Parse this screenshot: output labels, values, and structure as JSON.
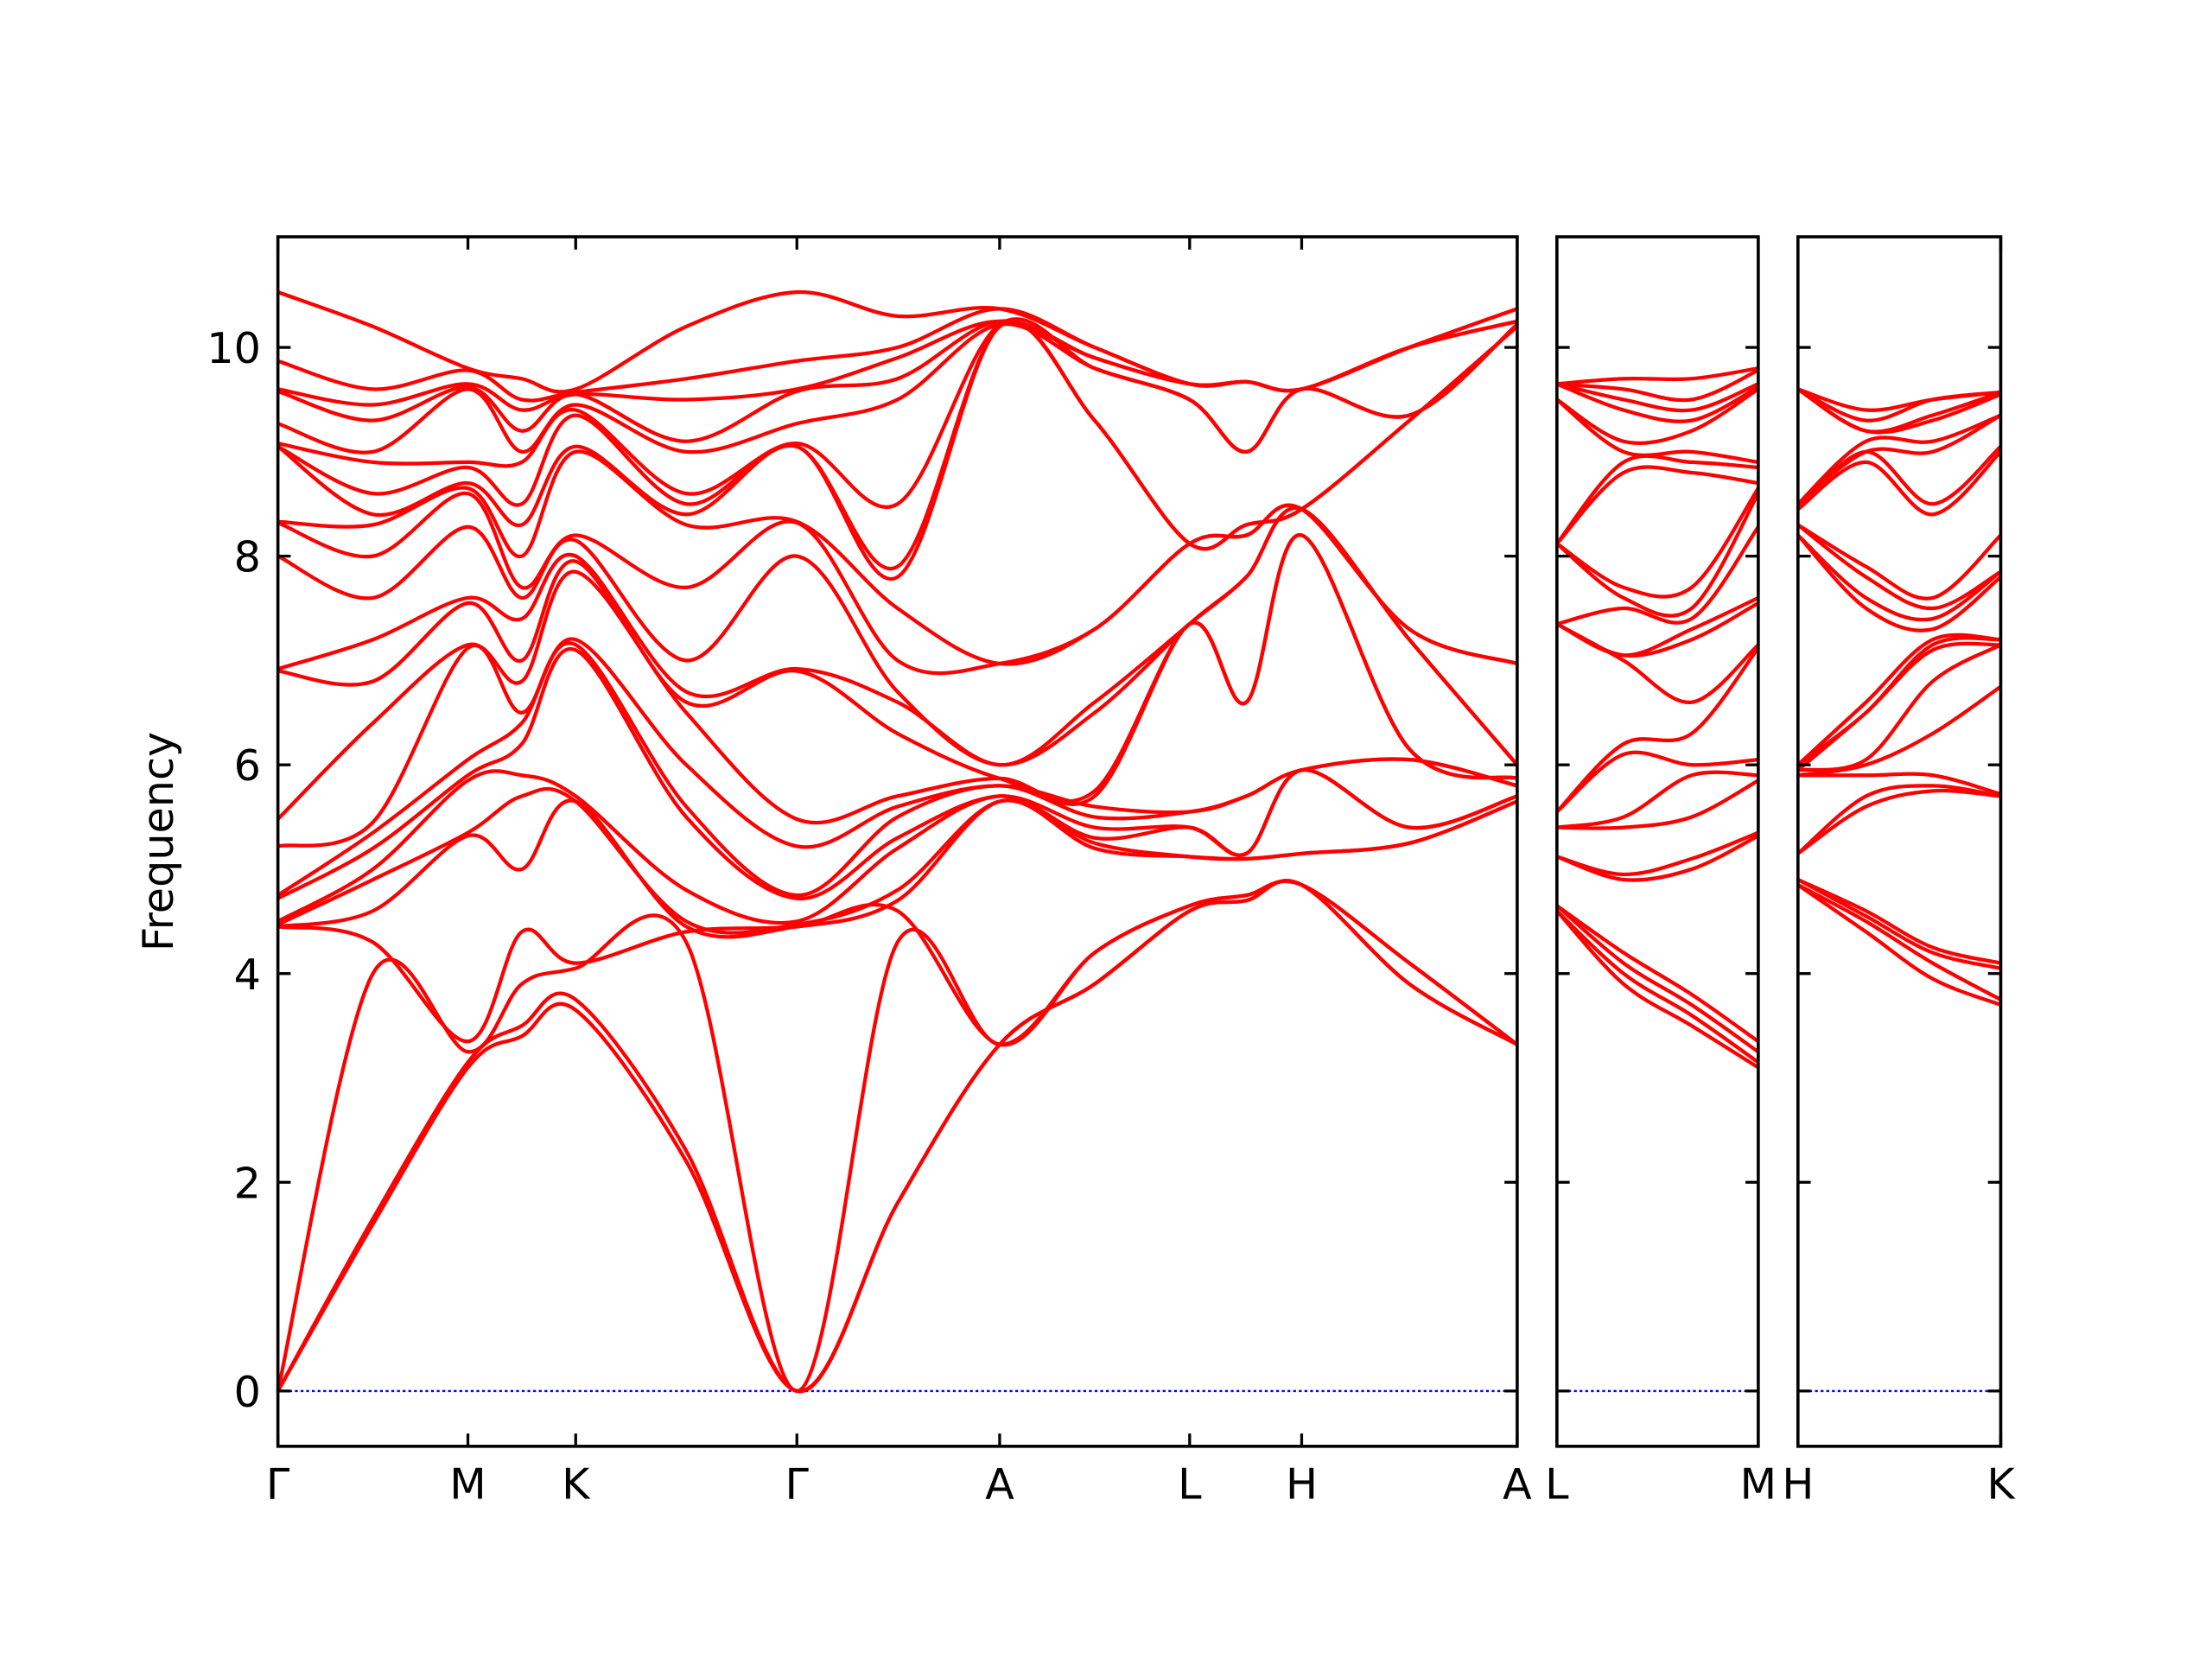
{
  "chart_data": [
    {
      "type": "line",
      "ylabel": "Frequency",
      "line_color": "#ff0000",
      "show_ytick_labels": true,
      "zero_line": {
        "value": 0,
        "color": "#0000ff"
      },
      "xlim": [
        0,
        8.74
      ],
      "ylim": [
        -0.53,
        11.06
      ],
      "yticks": [
        0,
        2,
        4,
        6,
        8,
        10
      ],
      "xticks": [
        {
          "value": 0,
          "label": "Γ"
        },
        {
          "value": 1.34,
          "label": "M"
        },
        {
          "value": 2.1,
          "label": "K"
        },
        {
          "value": 3.66,
          "label": "Γ"
        },
        {
          "value": 5.09,
          "label": "A"
        },
        {
          "value": 6.43,
          "label": "L"
        },
        {
          "value": 7.22,
          "label": "H"
        },
        {
          "value": 8.74,
          "label": "A"
        }
      ],
      "x": [
        0,
        0.67,
        1.34,
        1.72,
        2.1,
        2.88,
        3.66,
        4.37,
        5.09,
        5.76,
        6.43,
        6.83,
        7.22,
        7.98,
        8.74
      ],
      "series": [
        {
          "values": [
            0,
            1.6,
            3.1,
            3.4,
            3.65,
            2.2,
            0,
            1.8,
            3.32,
            3.9,
            4.6,
            4.7,
            4.85,
            3.9,
            3.32
          ]
        },
        {
          "values": [
            0,
            1.65,
            3.15,
            3.5,
            3.75,
            2.3,
            0,
            1.8,
            3.32,
            3.9,
            4.6,
            4.7,
            4.85,
            3.9,
            3.32
          ]
        },
        {
          "values": [
            0,
            4.0,
            3.25,
            3.9,
            4.05,
            4.3,
            0,
            4.3,
            3.32,
            4.2,
            4.65,
            4.75,
            4.85,
            4.1,
            3.32
          ]
        },
        {
          "values": [
            4.45,
            4.3,
            3.35,
            4.4,
            4.1,
            4.4,
            4.45,
            4.6,
            3.32,
            4.2,
            4.65,
            4.75,
            4.85,
            4.1,
            3.32
          ]
        },
        {
          "values": [
            4.45,
            4.6,
            5.32,
            5.0,
            5.65,
            4.45,
            4.45,
            4.7,
            5.65,
            5.2,
            5.12,
            5.1,
            5.15,
            5.25,
            5.65
          ]
        },
        {
          "values": [
            4.47,
            4.9,
            5.35,
            5.7,
            5.65,
            4.5,
            4.47,
            4.8,
            5.65,
            5.25,
            5.12,
            5.1,
            5.15,
            5.25,
            5.65
          ]
        },
        {
          "values": [
            4.5,
            5.0,
            5.85,
            5.9,
            5.7,
            4.8,
            4.5,
            5.2,
            5.7,
            5.3,
            5.4,
            5.15,
            5.95,
            5.4,
            5.7
          ]
        },
        {
          "values": [
            4.72,
            5.2,
            5.9,
            6.2,
            7.1,
            5.5,
            4.72,
            5.3,
            5.7,
            5.4,
            5.4,
            5.15,
            5.95,
            5.4,
            5.7
          ]
        },
        {
          "values": [
            4.75,
            5.35,
            6.05,
            6.4,
            7.15,
            5.6,
            4.75,
            5.5,
            5.8,
            5.5,
            5.55,
            5.7,
            5.95,
            6.05,
            5.8
          ]
        },
        {
          "values": [
            5.22,
            5.45,
            7.12,
            6.5,
            7.2,
            6.0,
            5.22,
            5.6,
            5.8,
            5.6,
            5.55,
            5.7,
            5.95,
            6.05,
            5.8
          ]
        },
        {
          "values": [
            5.48,
            6.4,
            7.15,
            6.8,
            7.85,
            6.5,
            5.48,
            5.7,
            5.87,
            5.7,
            7.35,
            6.6,
            8.2,
            6.15,
            5.87
          ]
        },
        {
          "values": [
            6.9,
            6.8,
            7.55,
            7.0,
            7.95,
            6.6,
            6.9,
            6.3,
            5.87,
            5.75,
            7.35,
            6.6,
            8.2,
            6.15,
            5.87
          ]
        },
        {
          "values": [
            6.92,
            7.2,
            7.6,
            7.4,
            8.0,
            6.7,
            6.92,
            6.6,
            6.0,
            6.5,
            7.35,
            7.8,
            8.45,
            7.2,
            6.0
          ]
        },
        {
          "values": [
            8.0,
            7.6,
            8.28,
            7.6,
            8.15,
            7.0,
            8.0,
            6.7,
            6.0,
            6.6,
            7.35,
            7.8,
            8.45,
            7.2,
            6.0
          ]
        },
        {
          "values": [
            8.32,
            8.0,
            8.6,
            7.7,
            8.2,
            7.7,
            8.32,
            7.0,
            6.97,
            7.3,
            8.12,
            8.2,
            8.45,
            7.3,
            6.97
          ]
        },
        {
          "values": [
            8.33,
            8.3,
            8.65,
            8.0,
            9.0,
            8.3,
            8.33,
            7.5,
            6.97,
            7.3,
            8.12,
            8.2,
            8.45,
            7.3,
            6.97
          ]
        },
        {
          "values": [
            9.05,
            8.4,
            8.7,
            8.3,
            9.05,
            8.4,
            9.05,
            7.8,
            10.2,
            9.3,
            8.12,
            8.3,
            8.45,
            9.3,
            10.2
          ]
        },
        {
          "values": [
            9.05,
            8.6,
            8.85,
            8.5,
            9.35,
            8.5,
            9.05,
            7.9,
            10.2,
            9.3,
            8.12,
            8.3,
            8.45,
            9.3,
            10.2
          ]
        },
        {
          "values": [
            9.08,
            8.9,
            8.9,
            8.9,
            9.4,
            8.6,
            9.08,
            8.5,
            10.22,
            9.8,
            9.5,
            9.0,
            9.6,
            9.35,
            10.22
          ]
        },
        {
          "values": [
            9.27,
            9.0,
            9.6,
            9.0,
            9.45,
            9.0,
            9.27,
            9.5,
            10.22,
            9.8,
            9.5,
            9.0,
            9.6,
            9.35,
            10.22
          ]
        },
        {
          "values": [
            9.58,
            9.3,
            9.62,
            9.2,
            9.55,
            9.1,
            9.58,
            9.7,
            10.25,
            9.9,
            9.65,
            9.67,
            9.6,
            10.0,
            10.25
          ]
        },
        {
          "values": [
            9.6,
            9.45,
            9.65,
            9.4,
            9.55,
            9.5,
            9.6,
            9.9,
            10.25,
            9.9,
            9.65,
            9.67,
            9.6,
            10.0,
            10.25
          ]
        },
        {
          "values": [
            9.87,
            9.6,
            9.78,
            9.5,
            9.57,
            9.7,
            9.87,
            10.0,
            10.37,
            10.0,
            9.65,
            9.67,
            9.6,
            10.0,
            10.37
          ]
        },
        {
          "values": [
            10.53,
            10.2,
            9.8,
            9.7,
            9.6,
            10.2,
            10.53,
            10.3,
            10.37,
            10.0,
            9.65,
            9.67,
            9.6,
            10.0,
            10.37
          ]
        }
      ]
    },
    {
      "type": "line",
      "line_color": "#ff0000",
      "show_ytick_labels": false,
      "zero_line": {
        "value": 0,
        "color": "#0000ff"
      },
      "xlim": [
        0,
        1.42
      ],
      "ylim": [
        -0.53,
        11.06
      ],
      "yticks": [
        0,
        2,
        4,
        6,
        8,
        10
      ],
      "xticks": [
        {
          "value": 0,
          "label": "L"
        },
        {
          "value": 1.42,
          "label": "M"
        }
      ],
      "x": [
        0,
        0.47,
        0.95,
        1.42
      ],
      "series": [
        {
          "values": [
            4.6,
            3.9,
            3.5,
            3.1
          ]
        },
        {
          "values": [
            4.6,
            4.0,
            3.6,
            3.15
          ]
        },
        {
          "values": [
            4.65,
            4.1,
            3.7,
            3.25
          ]
        },
        {
          "values": [
            4.65,
            4.2,
            3.8,
            3.35
          ]
        },
        {
          "values": [
            5.12,
            4.9,
            5.0,
            5.32
          ]
        },
        {
          "values": [
            5.12,
            4.95,
            5.1,
            5.35
          ]
        },
        {
          "values": [
            5.4,
            5.4,
            5.5,
            5.85
          ]
        },
        {
          "values": [
            5.4,
            5.5,
            5.9,
            5.9
          ]
        },
        {
          "values": [
            5.55,
            6.1,
            6.0,
            6.05
          ]
        },
        {
          "values": [
            5.55,
            6.2,
            6.3,
            7.12
          ]
        },
        {
          "values": [
            7.35,
            7.0,
            6.6,
            7.15
          ]
        },
        {
          "values": [
            7.35,
            7.05,
            7.2,
            7.55
          ]
        },
        {
          "values": [
            7.35,
            7.05,
            7.3,
            7.6
          ]
        },
        {
          "values": [
            7.35,
            7.5,
            7.4,
            8.28
          ]
        },
        {
          "values": [
            8.12,
            7.6,
            7.5,
            8.6
          ]
        },
        {
          "values": [
            8.12,
            7.7,
            7.7,
            8.65
          ]
        },
        {
          "values": [
            8.12,
            8.8,
            8.8,
            8.7
          ]
        },
        {
          "values": [
            8.12,
            8.9,
            8.9,
            8.85
          ]
        },
        {
          "values": [
            9.5,
            9.0,
            9.0,
            8.9
          ]
        },
        {
          "values": [
            9.5,
            9.1,
            9.2,
            9.6
          ]
        },
        {
          "values": [
            9.65,
            9.4,
            9.3,
            9.62
          ]
        },
        {
          "values": [
            9.65,
            9.5,
            9.4,
            9.65
          ]
        },
        {
          "values": [
            9.65,
            9.6,
            9.5,
            9.78
          ]
        },
        {
          "values": [
            9.65,
            9.7,
            9.7,
            9.8
          ]
        }
      ]
    },
    {
      "type": "line",
      "line_color": "#ff0000",
      "show_ytick_labels": false,
      "zero_line": {
        "value": 0,
        "color": "#0000ff"
      },
      "xlim": [
        0,
        1.43
      ],
      "ylim": [
        -0.53,
        11.06
      ],
      "yticks": [
        0,
        2,
        4,
        6,
        8,
        10
      ],
      "xticks": [
        {
          "value": 0,
          "label": "H"
        },
        {
          "value": 1.43,
          "label": "K"
        }
      ],
      "x": [
        0,
        0.48,
        0.95,
        1.43
      ],
      "series": [
        {
          "values": [
            4.85,
            4.4,
            3.95,
            3.7
          ]
        },
        {
          "values": [
            4.85,
            4.5,
            4.1,
            3.75
          ]
        },
        {
          "values": [
            4.9,
            4.55,
            4.2,
            4.05
          ]
        },
        {
          "values": [
            4.9,
            4.6,
            4.25,
            4.1
          ]
        },
        {
          "values": [
            5.15,
            5.6,
            5.75,
            5.7
          ]
        },
        {
          "values": [
            5.15,
            5.7,
            5.8,
            5.7
          ]
        },
        {
          "values": [
            5.9,
            5.9,
            5.9,
            5.72
          ]
        },
        {
          "values": [
            5.9,
            6.0,
            6.3,
            6.75
          ]
        },
        {
          "values": [
            5.95,
            6.05,
            6.8,
            7.15
          ]
        },
        {
          "values": [
            5.95,
            6.5,
            7.1,
            7.15
          ]
        },
        {
          "values": [
            6.0,
            6.5,
            7.15,
            7.2
          ]
        },
        {
          "values": [
            6.0,
            6.6,
            7.2,
            7.2
          ]
        },
        {
          "values": [
            8.2,
            7.5,
            7.3,
            7.8
          ]
        },
        {
          "values": [
            8.2,
            7.6,
            7.4,
            7.85
          ]
        },
        {
          "values": [
            8.3,
            7.8,
            7.5,
            7.85
          ]
        },
        {
          "values": [
            8.3,
            7.9,
            7.6,
            8.2
          ]
        },
        {
          "values": [
            8.45,
            8.9,
            8.4,
            9.0
          ]
        },
        {
          "values": [
            8.45,
            9.0,
            8.5,
            9.05
          ]
        },
        {
          "values": [
            8.5,
            9.0,
            9.0,
            9.35
          ]
        },
        {
          "values": [
            8.5,
            9.1,
            9.1,
            9.35
          ]
        },
        {
          "values": [
            9.6,
            9.2,
            9.3,
            9.55
          ]
        },
        {
          "values": [
            9.6,
            9.2,
            9.35,
            9.57
          ]
        },
        {
          "values": [
            9.6,
            9.3,
            9.5,
            9.57
          ]
        },
        {
          "values": [
            9.6,
            9.4,
            9.5,
            9.57
          ]
        }
      ]
    }
  ]
}
